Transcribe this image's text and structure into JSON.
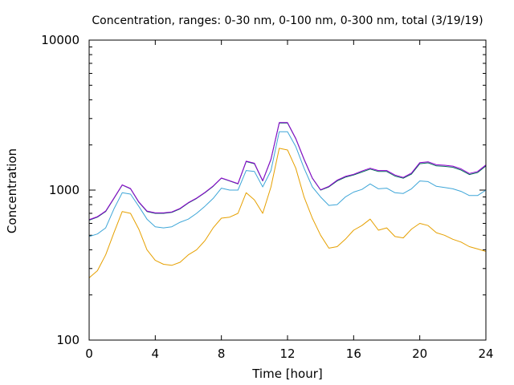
{
  "chart_data": {
    "type": "line",
    "title": "Concentration, ranges: 0-30 nm, 0-100 nm, 0-300 nm, total (3/19/19)",
    "xlabel": "Time [hour]",
    "ylabel": "Concentration",
    "xlim": [
      0,
      24
    ],
    "ylim": [
      100,
      10000
    ],
    "yscale": "log",
    "grid": false,
    "legend": "none",
    "x_ticks": [
      0,
      4,
      8,
      12,
      16,
      20,
      24
    ],
    "x_tick_labels": [
      "0",
      "4",
      "8",
      "12",
      "16",
      "20",
      "24"
    ],
    "y_major_ticks": [
      100,
      1000,
      10000
    ],
    "y_tick_labels": [
      "100",
      "1000",
      "10000"
    ],
    "x": [
      0,
      0.5,
      1,
      1.5,
      2,
      2.5,
      3,
      3.5,
      4,
      4.5,
      5,
      5.5,
      6,
      6.5,
      7,
      7.5,
      8,
      8.5,
      9,
      9.5,
      10,
      10.5,
      11,
      11.5,
      12,
      12.5,
      13,
      13.5,
      14,
      14.5,
      15,
      15.5,
      16,
      16.5,
      17,
      17.5,
      18,
      18.5,
      19,
      19.5,
      20,
      20.5,
      21,
      21.5,
      22,
      22.5,
      23,
      23.5,
      24
    ],
    "series": [
      {
        "color": "#e6a000",
        "values": [
          260,
          290,
          370,
          520,
          720,
          700,
          550,
          400,
          340,
          320,
          315,
          330,
          370,
          400,
          460,
          560,
          650,
          660,
          700,
          960,
          860,
          700,
          1050,
          1900,
          1850,
          1400,
          900,
          650,
          500,
          410,
          420,
          470,
          540,
          580,
          640,
          540,
          560,
          490,
          480,
          550,
          600,
          580,
          520,
          500,
          470,
          450,
          420,
          405,
          390
        ]
      },
      {
        "color": "#3ea6d8",
        "values": [
          490,
          510,
          560,
          750,
          960,
          940,
          780,
          640,
          570,
          560,
          570,
          610,
          640,
          700,
          780,
          880,
          1030,
          1000,
          1000,
          1350,
          1330,
          1050,
          1350,
          2450,
          2450,
          1950,
          1400,
          1050,
          900,
          790,
          800,
          900,
          970,
          1010,
          1100,
          1020,
          1030,
          960,
          950,
          1020,
          1150,
          1140,
          1060,
          1040,
          1020,
          980,
          920,
          920,
          1000
        ]
      },
      {
        "color": "#00685a",
        "values": [
          630,
          660,
          720,
          880,
          1080,
          1020,
          830,
          720,
          700,
          700,
          710,
          750,
          820,
          880,
          960,
          1060,
          1200,
          1150,
          1100,
          1550,
          1500,
          1150,
          1600,
          2800,
          2800,
          2200,
          1600,
          1200,
          1000,
          1050,
          1150,
          1220,
          1260,
          1320,
          1380,
          1330,
          1330,
          1240,
          1200,
          1280,
          1500,
          1520,
          1450,
          1440,
          1420,
          1360,
          1270,
          1310,
          1450
        ]
      },
      {
        "color": "#9400d3",
        "values": [
          635,
          665,
          725,
          885,
          1085,
          1025,
          835,
          725,
          705,
          705,
          715,
          755,
          825,
          885,
          965,
          1065,
          1205,
          1155,
          1105,
          1560,
          1510,
          1155,
          1610,
          2820,
          2820,
          2210,
          1610,
          1205,
          1005,
          1060,
          1165,
          1235,
          1275,
          1340,
          1400,
          1350,
          1350,
          1260,
          1215,
          1300,
          1525,
          1545,
          1475,
          1465,
          1445,
          1385,
          1290,
          1330,
          1470
        ]
      }
    ]
  }
}
